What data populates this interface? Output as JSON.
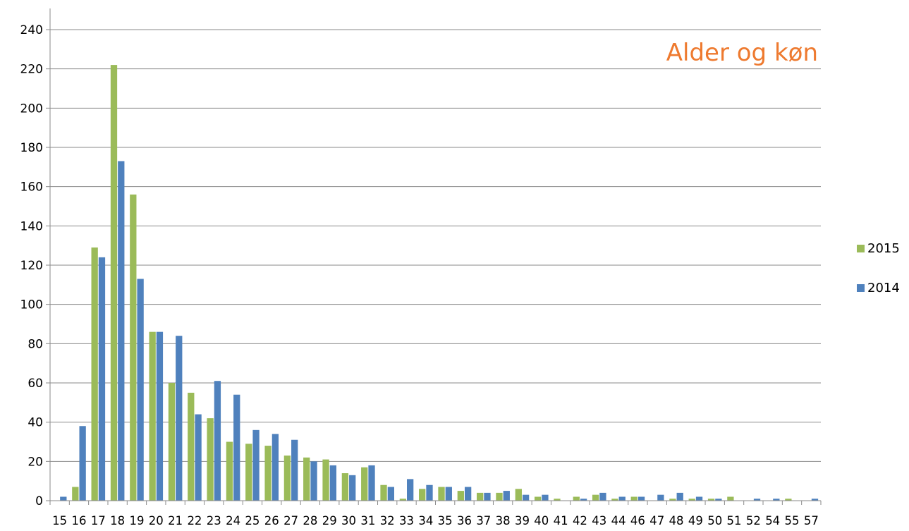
{
  "chart_data": {
    "type": "bar",
    "title": "Alder og køn",
    "title_color": "#ee7a2f",
    "xlabel": "",
    "ylabel": "",
    "ylim": [
      0,
      240
    ],
    "y_ticks": [
      0,
      20,
      40,
      60,
      80,
      100,
      120,
      140,
      160,
      180,
      200,
      220,
      240
    ],
    "grid": true,
    "legend_position": "right",
    "categories": [
      "15",
      "16",
      "17",
      "18",
      "19",
      "20",
      "21",
      "22",
      "23",
      "24",
      "25",
      "26",
      "27",
      "28",
      "29",
      "30",
      "31",
      "32",
      "33",
      "34",
      "35",
      "36",
      "37",
      "38",
      "39",
      "40",
      "41",
      "42",
      "43",
      "44",
      "46",
      "47",
      "48",
      "49",
      "50",
      "51",
      "52",
      "54",
      "55",
      "57"
    ],
    "series": [
      {
        "name": "2015",
        "color": "#9bbb59",
        "values": [
          0,
          7,
          129,
          222,
          156,
          86,
          60,
          55,
          42,
          30,
          29,
          28,
          23,
          22,
          21,
          14,
          17,
          8,
          1,
          6,
          7,
          5,
          4,
          4,
          6,
          2,
          1,
          2,
          3,
          1,
          2,
          0,
          1,
          1,
          1,
          2,
          0,
          0,
          1,
          0
        ]
      },
      {
        "name": "2014",
        "color": "#4f81bd",
        "values": [
          2,
          38,
          124,
          173,
          113,
          86,
          84,
          44,
          61,
          54,
          36,
          34,
          31,
          20,
          18,
          13,
          18,
          7,
          11,
          8,
          7,
          7,
          4,
          5,
          3,
          3,
          0,
          1,
          4,
          2,
          2,
          3,
          4,
          2,
          1,
          0,
          1,
          1,
          0,
          1
        ]
      }
    ]
  }
}
